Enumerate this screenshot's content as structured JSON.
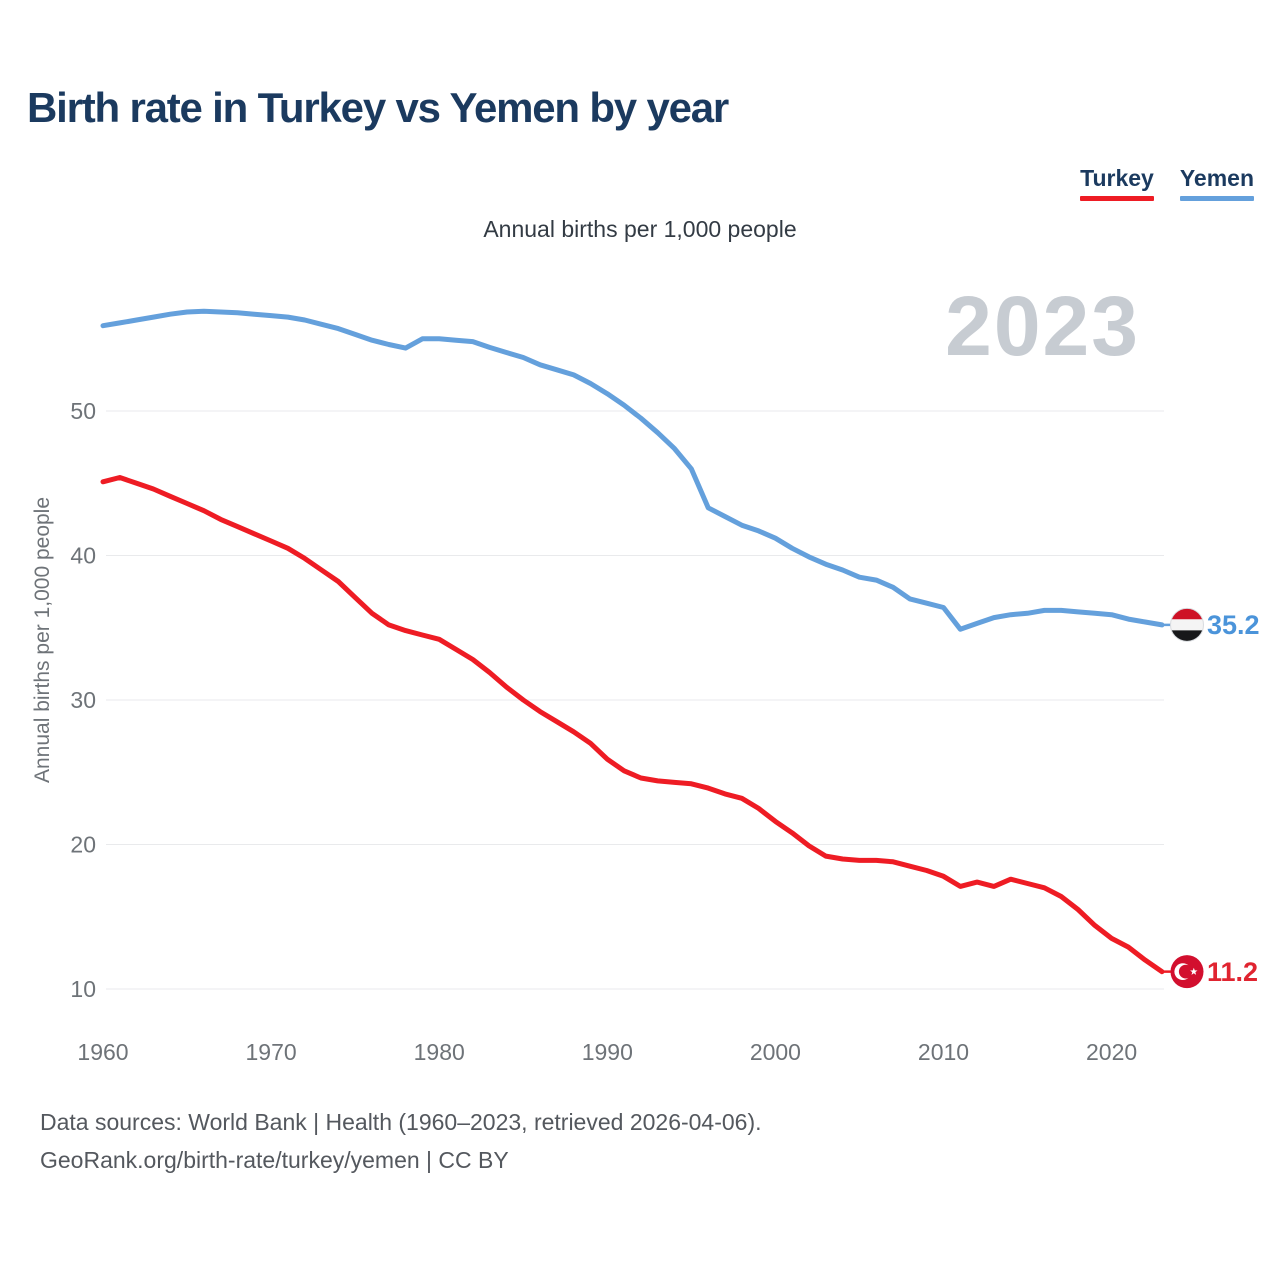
{
  "header": {
    "title": "Birth rate in Turkey vs Yemen by year"
  },
  "subtitle": "Annual births per 1,000 people",
  "watermark": "2023",
  "y_axis_title": "Annual births per 1,000 people",
  "footer": {
    "line1": "Data sources: World Bank | Health (1960–2023, retrieved 2026-04-06).",
    "line2": "GeoRank.org/birth-rate/turkey/yemen | CC BY"
  },
  "colors": {
    "title_navy": "#1b3a5f",
    "axis_gray": "#6e7378",
    "gridline": "#e9eaec",
    "watermark_gray": "#c7ccd2",
    "turkey_red": "#ee1c24",
    "yemen_blue": "#64a0dc"
  },
  "chart_data": {
    "type": "line",
    "title": "Birth rate in Turkey vs Yemen by year",
    "subtitle": "Annual births per 1,000 people",
    "ylabel": "Annual births per 1,000 people",
    "x_start": 1960,
    "x_end": 2023,
    "xlim": [
      1960,
      2023
    ],
    "ylim": [
      8,
      58
    ],
    "grid": "horizontal",
    "legend_position": "top-right",
    "x_ticks": [
      1960,
      1970,
      1980,
      1990,
      2000,
      2010,
      2020
    ],
    "y_ticks": [
      10,
      20,
      30,
      40,
      50
    ],
    "series": [
      {
        "name": "Turkey",
        "color": "#ee1c24",
        "label_color": "#e02430",
        "end_label": "11.2",
        "flag": "turkey",
        "values": [
          45.1,
          45.4,
          45.0,
          44.6,
          44.1,
          43.6,
          43.1,
          42.5,
          42.0,
          41.5,
          41.0,
          40.5,
          39.8,
          39.0,
          38.2,
          37.1,
          36.0,
          35.2,
          34.8,
          34.5,
          34.2,
          33.5,
          32.8,
          31.9,
          30.9,
          30.0,
          29.2,
          28.5,
          27.8,
          27.0,
          25.9,
          25.1,
          24.6,
          24.4,
          24.3,
          24.2,
          23.9,
          23.5,
          23.2,
          22.5,
          21.6,
          20.8,
          19.9,
          19.2,
          19.0,
          18.9,
          18.9,
          18.8,
          18.5,
          18.2,
          17.8,
          17.1,
          17.4,
          17.1,
          17.6,
          17.3,
          17.0,
          16.4,
          15.5,
          14.4,
          13.5,
          12.9,
          12.0,
          11.2
        ]
      },
      {
        "name": "Yemen",
        "color": "#64a0dc",
        "label_color": "#4b94da",
        "end_label": "35.2",
        "flag": "yemen",
        "values": [
          55.9,
          56.1,
          56.3,
          56.5,
          56.7,
          56.85,
          56.9,
          56.85,
          56.8,
          56.7,
          56.6,
          56.5,
          56.3,
          56.0,
          55.7,
          55.3,
          54.9,
          54.6,
          54.35,
          55.0,
          55.0,
          54.9,
          54.8,
          54.4,
          54.05,
          53.7,
          53.2,
          52.85,
          52.5,
          51.9,
          51.2,
          50.4,
          49.5,
          48.5,
          47.4,
          46.0,
          43.3,
          42.7,
          42.1,
          41.7,
          41.2,
          40.5,
          39.9,
          39.4,
          39.0,
          38.5,
          38.3,
          37.8,
          37.0,
          36.7,
          36.4,
          34.9,
          35.3,
          35.7,
          35.9,
          36.0,
          36.2,
          36.2,
          36.1,
          36.0,
          35.9,
          35.6,
          35.4,
          35.2
        ]
      }
    ]
  }
}
